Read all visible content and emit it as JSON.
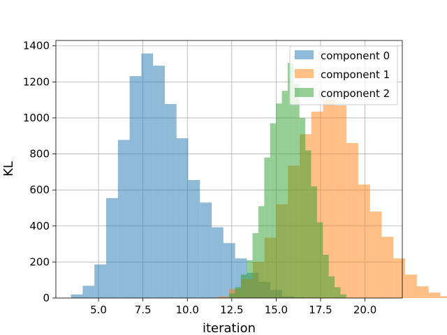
{
  "chart_data": {
    "type": "bar",
    "title": "",
    "xlabel": "iteration",
    "ylabel": "KL",
    "xlim": [
      2.6,
      22.1
    ],
    "ylim": [
      0,
      1430
    ],
    "xticks": [
      5.0,
      7.5,
      10.0,
      12.5,
      15.0,
      17.5,
      20.0
    ],
    "xtick_labels": [
      "5.0",
      "7.5",
      "10.0",
      "12.5",
      "15.0",
      "17.5",
      "20.0"
    ],
    "yticks": [
      0,
      200,
      400,
      600,
      800,
      1000,
      1200,
      1400
    ],
    "ytick_labels": [
      "0",
      "200",
      "400",
      "600",
      "800",
      "1000",
      "1200",
      "1400"
    ],
    "grid": true,
    "legend_position": "top-right",
    "histogram": true,
    "series": [
      {
        "name": "component 0",
        "color": "#1f77b4",
        "opacity": 0.5,
        "bin_start": 3.45,
        "bin_width": 0.66,
        "values": [
          20,
          68,
          186,
          555,
          878,
          1232,
          1358,
          1290,
          1077,
          887,
          655,
          530,
          393,
          305,
          220,
          140,
          90,
          45,
          10,
          3
        ]
      },
      {
        "name": "component 1",
        "color": "#ff7f0e",
        "opacity": 0.5,
        "bin_start": 11.7,
        "bin_width": 0.66,
        "values": [
          8,
          50,
          105,
          200,
          335,
          520,
          735,
          910,
          1035,
          1100,
          1070,
          860,
          630,
          480,
          340,
          220,
          130,
          65,
          30,
          10
        ]
      },
      {
        "name": "component 2",
        "color": "#2ca02c",
        "opacity": 0.5,
        "bin_start": 12.35,
        "bin_width": 0.33,
        "values": [
          25,
          60,
          130,
          210,
          360,
          510,
          780,
          970,
          1080,
          1150,
          1305,
          1190,
          1000,
          820,
          620,
          420,
          240,
          120,
          60,
          20
        ]
      }
    ]
  }
}
